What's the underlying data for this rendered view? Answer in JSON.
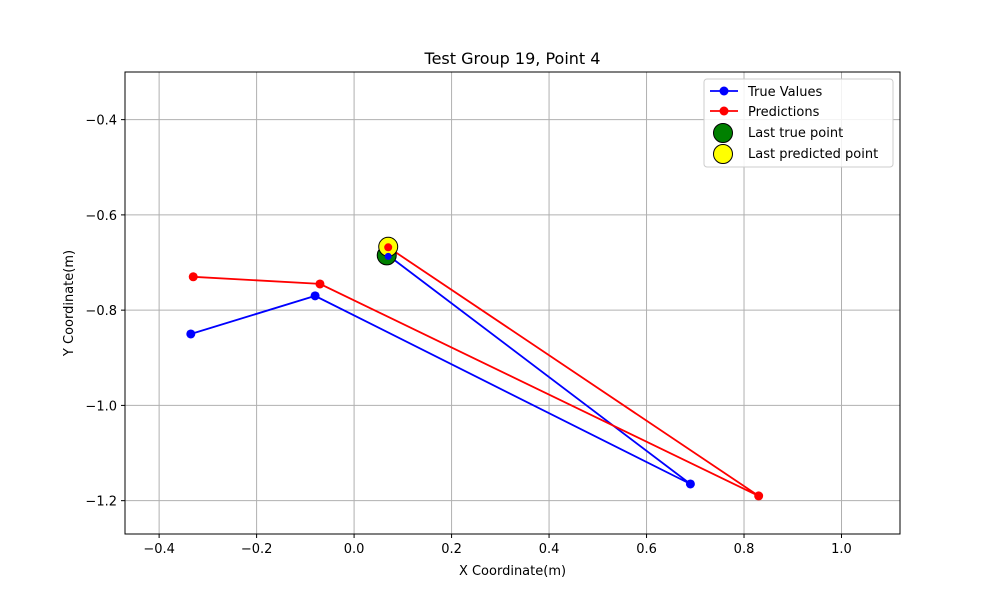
{
  "chart_data": {
    "type": "line",
    "title": "Test Group 19, Point 4",
    "xlabel": "X Coordinate(m)",
    "ylabel": "Y Coordinate(m)",
    "xlim": [
      -0.47,
      1.12
    ],
    "ylim": [
      -1.27,
      -0.3
    ],
    "x_ticks": [
      -0.4,
      -0.2,
      0.0,
      0.2,
      0.4,
      0.6,
      0.8,
      1.0
    ],
    "x_tick_labels": [
      "−0.4",
      "−0.2",
      "0.0",
      "0.2",
      "0.4",
      "0.6",
      "0.8",
      "1.0"
    ],
    "y_ticks": [
      -0.4,
      -0.6,
      -0.8,
      -1.0,
      -1.2
    ],
    "y_tick_labels": [
      "−0.4",
      "−0.6",
      "−0.8",
      "−1.0",
      "−1.2"
    ],
    "grid": true,
    "legend_position": "top-right",
    "series": [
      {
        "name": "True Values",
        "color": "#0000ff",
        "marker": "circle",
        "points": [
          [
            -0.335,
            -0.85
          ],
          [
            -0.08,
            -0.77
          ],
          [
            0.69,
            -1.165
          ],
          [
            0.07,
            -0.685
          ]
        ]
      },
      {
        "name": "Predictions",
        "color": "#ff0000",
        "marker": "circle",
        "points": [
          [
            -0.33,
            -0.73
          ],
          [
            -0.07,
            -0.745
          ],
          [
            0.83,
            -1.19
          ],
          [
            0.07,
            -0.668
          ]
        ]
      }
    ],
    "highlights": [
      {
        "name": "Last true point",
        "x": 0.067,
        "y": -0.685,
        "color": "#008000"
      },
      {
        "name": "Last predicted point",
        "x": 0.07,
        "y": -0.667,
        "color": "#ffff00"
      }
    ]
  }
}
